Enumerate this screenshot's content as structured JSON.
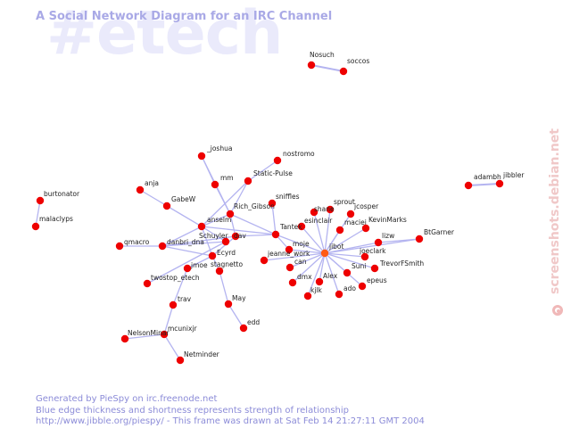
{
  "watermark": "#etech",
  "title": "A Social Network Diagram for an IRC Channel",
  "footer": {
    "line1": "Generated by PieSpy on irc.freenode.net",
    "line2": "Blue edge thickness and shortness represents strength of relationship",
    "line3": "http://www.jibble.org/piespy/ - This frame was drawn at Sat Feb 14 21:27:11 GMT 2004"
  },
  "side_credit": "screenshots.debian.net",
  "colors": {
    "node": "#ee0000",
    "edge": "#b4b4f0",
    "title": "#a9a9e6",
    "watermark": "#eaeafb"
  },
  "nodes": [
    {
      "id": "Nosuch",
      "label": "Nosuch"
    },
    {
      "id": "soccos",
      "label": "soccos"
    },
    {
      "id": "adambh",
      "label": "adambh"
    },
    {
      "id": "jibbler",
      "label": "jibbler"
    },
    {
      "id": "burtonator",
      "label": "burtonator"
    },
    {
      "id": "malaclyps",
      "label": "malaclyps"
    },
    {
      "id": "joshua",
      "label": "_joshua"
    },
    {
      "id": "nostromo",
      "label": "nostromo"
    },
    {
      "id": "mm",
      "label": "mm"
    },
    {
      "id": "static",
      "label": "Static-Pulse"
    },
    {
      "id": "anja",
      "label": "anja"
    },
    {
      "id": "sniffles",
      "label": "sniffles"
    },
    {
      "id": "gabew",
      "label": "GabeW"
    },
    {
      "id": "rich",
      "label": "Rich_Gibson"
    },
    {
      "id": "sprout",
      "label": "sprout"
    },
    {
      "id": "shane",
      "label": "shane"
    },
    {
      "id": "jcosper",
      "label": "jcosper"
    },
    {
      "id": "esinclair",
      "label": "esinclair"
    },
    {
      "id": "maciej",
      "label": "maciej"
    },
    {
      "id": "kevin",
      "label": "KevinMarks"
    },
    {
      "id": "anselm",
      "label": "anselm"
    },
    {
      "id": "tantek",
      "label": "Tantek"
    },
    {
      "id": "btgarner",
      "label": "BtGarner"
    },
    {
      "id": "schuyler",
      "label": "Schuyler"
    },
    {
      "id": "dav",
      "label": "dav"
    },
    {
      "id": "lizw",
      "label": "lizw"
    },
    {
      "id": "qmacro",
      "label": "qmacro"
    },
    {
      "id": "danbri",
      "label": "danbri_dna"
    },
    {
      "id": "moje",
      "label": "moje"
    },
    {
      "id": "jibot",
      "label": "jibot"
    },
    {
      "id": "joeclark",
      "label": "joeclark"
    },
    {
      "id": "ecyrd",
      "label": "Ecyrd"
    },
    {
      "id": "jeanne",
      "label": "jeanne_work"
    },
    {
      "id": "jmoe",
      "label": "jmoe"
    },
    {
      "id": "stagnetto",
      "label": "stagnetto"
    },
    {
      "id": "trevor",
      "label": "TrevorFSmith"
    },
    {
      "id": "can",
      "label": "can"
    },
    {
      "id": "suni",
      "label": "Suni"
    },
    {
      "id": "twostop",
      "label": "twostop_etech"
    },
    {
      "id": "dmx",
      "label": "dmx"
    },
    {
      "id": "alex",
      "label": "Alex"
    },
    {
      "id": "epeus",
      "label": "epeus"
    },
    {
      "id": "kjlk",
      "label": "kjlk"
    },
    {
      "id": "ado",
      "label": "ado"
    },
    {
      "id": "trav",
      "label": "trav"
    },
    {
      "id": "may",
      "label": "May"
    },
    {
      "id": "mcunixjr",
      "label": "mcunixjr"
    },
    {
      "id": "nelson",
      "label": "NelsonMinar"
    },
    {
      "id": "edd",
      "label": "edd"
    },
    {
      "id": "netminder",
      "label": "Netminder"
    }
  ],
  "edges": [
    [
      "Nosuch",
      "soccos"
    ],
    [
      "adambh",
      "jibbler"
    ],
    [
      "burtonator",
      "malaclyps"
    ],
    [
      "joshua",
      "mm"
    ],
    [
      "joshua",
      "rich"
    ],
    [
      "nostromo",
      "static"
    ],
    [
      "mm",
      "rich"
    ],
    [
      "static",
      "rich"
    ],
    [
      "static",
      "anselm"
    ],
    [
      "anja",
      "anselm"
    ],
    [
      "gabew",
      "anselm"
    ],
    [
      "rich",
      "tantek"
    ],
    [
      "rich",
      "anselm"
    ],
    [
      "rich",
      "dav"
    ],
    [
      "sniffles",
      "tantek"
    ],
    [
      "anselm",
      "tantek"
    ],
    [
      "anselm",
      "schuyler"
    ],
    [
      "anselm",
      "ecyrd"
    ],
    [
      "anselm",
      "danbri"
    ],
    [
      "schuyler",
      "danbri"
    ],
    [
      "qmacro",
      "danbri"
    ],
    [
      "danbri",
      "ecyrd"
    ],
    [
      "danbri",
      "dav"
    ],
    [
      "dav",
      "tantek"
    ],
    [
      "ecyrd",
      "jmoe"
    ],
    [
      "ecyrd",
      "stagnetto"
    ],
    [
      "ecyrd",
      "dav"
    ],
    [
      "twostop",
      "schuyler"
    ],
    [
      "jmoe",
      "trav"
    ],
    [
      "stagnetto",
      "may"
    ],
    [
      "may",
      "edd"
    ],
    [
      "trav",
      "mcunixjr"
    ],
    [
      "mcunixjr",
      "nelson"
    ],
    [
      "mcunixjr",
      "netminder"
    ],
    [
      "tantek",
      "jibot"
    ],
    [
      "tantek",
      "moje"
    ],
    [
      "jeanne",
      "jibot"
    ],
    [
      "sprout",
      "jibot"
    ],
    [
      "shane",
      "jibot"
    ],
    [
      "jcosper",
      "jibot"
    ],
    [
      "esinclair",
      "jibot"
    ],
    [
      "maciej",
      "jibot"
    ],
    [
      "kevin",
      "jibot"
    ],
    [
      "lizw",
      "jibot"
    ],
    [
      "btgarner",
      "jibot"
    ],
    [
      "btgarner",
      "lizw"
    ],
    [
      "joeclark",
      "jibot"
    ],
    [
      "trevor",
      "jibot"
    ],
    [
      "suni",
      "jibot"
    ],
    [
      "can",
      "jibot"
    ],
    [
      "dmx",
      "jibot"
    ],
    [
      "alex",
      "jibot"
    ],
    [
      "epeus",
      "jibot"
    ],
    [
      "kjlk",
      "jibot"
    ],
    [
      "ado",
      "jibot"
    ],
    [
      "moje",
      "jibot"
    ]
  ]
}
